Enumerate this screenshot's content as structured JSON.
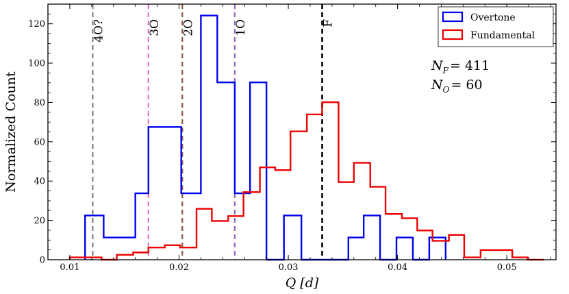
{
  "chart_data": {
    "type": "histogram",
    "xlabel": "Q [d]",
    "ylabel": "Normalized Count",
    "xlim": [
      0.008,
      0.0545
    ],
    "ylim": [
      0,
      130
    ],
    "x_ticks": [
      0.01,
      0.02,
      0.03,
      0.04,
      0.05
    ],
    "x_tick_labels": [
      "0.01",
      "0.02",
      "0.03",
      "0.04",
      "0.05"
    ],
    "y_ticks": [
      0,
      20,
      40,
      60,
      80,
      100,
      120
    ],
    "y_tick_labels": [
      "0",
      "20",
      "40",
      "60",
      "80",
      "100",
      "120"
    ],
    "grid": false,
    "legend_position": "top-right",
    "series": [
      {
        "name": "Overtone",
        "color": "#0000ee",
        "edges": [
          0.0114,
          0.0131,
          0.016,
          0.0172,
          0.0202,
          0.022,
          0.0235,
          0.0251,
          0.0265,
          0.028,
          0.0296,
          0.0312,
          0.0325,
          0.034,
          0.0355,
          0.0369,
          0.0384,
          0.0399,
          0.0414,
          0.0429,
          0.0444
        ],
        "values": [
          22.5,
          11.3,
          33.8,
          67.5,
          33.8,
          124.2,
          90.2,
          33.8,
          90.2,
          0,
          22.5,
          0,
          0,
          0,
          11.3,
          22.5,
          0,
          11.3,
          0,
          11.3
        ]
      },
      {
        "name": "Fundamental",
        "color": "#ee0000",
        "edges": [
          0.01,
          0.0129,
          0.0143,
          0.0158,
          0.0172,
          0.0187,
          0.0201,
          0.0216,
          0.023,
          0.0245,
          0.0259,
          0.0274,
          0.0288,
          0.0302,
          0.0317,
          0.0331,
          0.0346,
          0.036,
          0.0375,
          0.0389,
          0.0404,
          0.0418,
          0.0432,
          0.0447,
          0.0461,
          0.0476,
          0.049,
          0.0505,
          0.0519,
          0.0534
        ],
        "values": [
          1.2,
          0,
          2.5,
          3.7,
          6.2,
          7.4,
          6.2,
          25.9,
          19.7,
          22.2,
          34.4,
          47.0,
          45.6,
          65.3,
          73.9,
          80.1,
          39.5,
          49.3,
          37.1,
          23.3,
          21.1,
          14.9,
          9.6,
          12.6,
          1.2,
          4.9,
          4.9,
          1.2,
          0
        ]
      }
    ],
    "reference_lines": [
      {
        "x": 0.0121,
        "label": "4O?",
        "color": "#7f7f7f"
      },
      {
        "x": 0.0172,
        "label": "3O",
        "color": "#e377c2"
      },
      {
        "x": 0.0203,
        "label": "2O",
        "color": "#8c564b"
      },
      {
        "x": 0.0251,
        "label": "1O",
        "color": "#9467bd"
      },
      {
        "x": 0.0331,
        "label": "F",
        "color": "#000000"
      }
    ],
    "annotations": {
      "nf_symbol": "N",
      "nf_sub": "F",
      "nf_value": "= 411",
      "no_symbol": "N",
      "no_sub": "O",
      "no_value": "= 60"
    }
  }
}
